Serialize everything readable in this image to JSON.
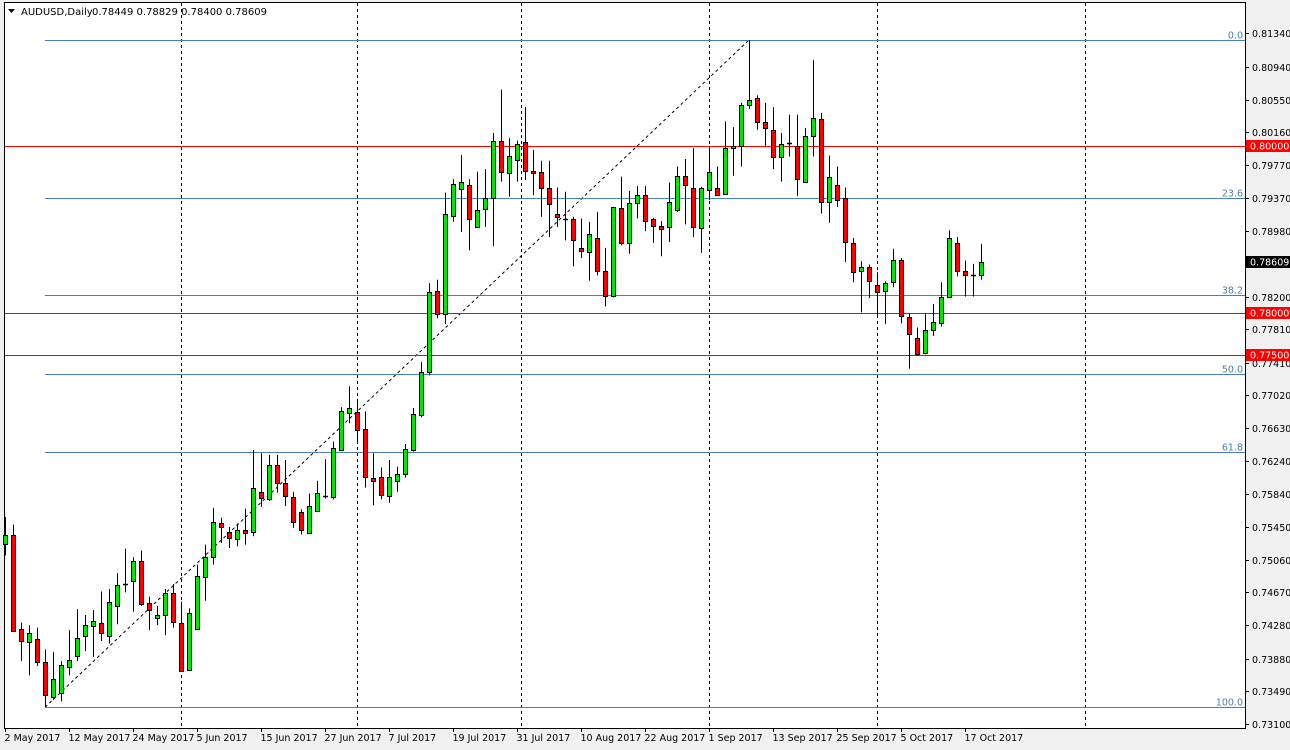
{
  "window": {
    "symbol_timeframe": "AUDUSD,Daily",
    "ohlc_readout": "0.78449 0.78829 0.78400 0.78609",
    "menu_icon": "triangle-down-icon"
  },
  "colors": {
    "bull": "#00e600",
    "bear": "#ff0000",
    "fib": "#4a7fb5",
    "hline": "#ff0000",
    "current_price_bg": "#000000"
  },
  "chart_data": {
    "type": "candlestick",
    "title": "AUDUSD,Daily",
    "ylim": [
      0.731,
      0.8134
    ],
    "grid": false,
    "y_ticks": [
      "0.81340",
      "0.80940",
      "0.80550",
      "0.80160",
      "0.79770",
      "0.79370",
      "0.78980",
      "0.78200",
      "0.77810",
      "0.77410",
      "0.77020",
      "0.76630",
      "0.76240",
      "0.75840",
      "0.75450",
      "0.75060",
      "0.74670",
      "0.74280",
      "0.73880",
      "0.73490",
      "0.73100"
    ],
    "x_ticks": [
      {
        "label": "2 May 2017",
        "bar": 0
      },
      {
        "label": "12 May 2017",
        "bar": 8
      },
      {
        "label": "24 May 2017",
        "bar": 16
      },
      {
        "label": "5 Jun 2017",
        "bar": 24
      },
      {
        "label": "15 Jun 2017",
        "bar": 32
      },
      {
        "label": "27 Jun 2017",
        "bar": 40
      },
      {
        "label": "7 Jul 2017",
        "bar": 48
      },
      {
        "label": "19 Jul 2017",
        "bar": 56
      },
      {
        "label": "31 Jul 2017",
        "bar": 64
      },
      {
        "label": "10 Aug 2017",
        "bar": 72
      },
      {
        "label": "22 Aug 2017",
        "bar": 80
      },
      {
        "label": "1 Sep 2017",
        "bar": 88
      },
      {
        "label": "13 Sep 2017",
        "bar": 96
      },
      {
        "label": "25 Sep 2017",
        "bar": 104
      },
      {
        "label": "5 Oct 2017",
        "bar": 112
      },
      {
        "label": "17 Oct 2017",
        "bar": 120
      }
    ],
    "ohlc": [
      [
        0.7525,
        0.7557,
        0.7511,
        0.7536
      ],
      [
        0.7536,
        0.7548,
        0.7421,
        0.7422
      ],
      [
        0.7423,
        0.7431,
        0.7385,
        0.7409
      ],
      [
        0.7408,
        0.7428,
        0.7368,
        0.7419
      ],
      [
        0.7411,
        0.7425,
        0.7379,
        0.7384
      ],
      [
        0.7384,
        0.7399,
        0.733,
        0.7345
      ],
      [
        0.7342,
        0.7396,
        0.7339,
        0.7364
      ],
      [
        0.7347,
        0.7385,
        0.7337,
        0.738
      ],
      [
        0.7378,
        0.7422,
        0.7368,
        0.7386
      ],
      [
        0.7391,
        0.7447,
        0.7385,
        0.7413
      ],
      [
        0.7415,
        0.744,
        0.7397,
        0.7428
      ],
      [
        0.7427,
        0.7446,
        0.739,
        0.7433
      ],
      [
        0.7431,
        0.7468,
        0.7409,
        0.7419
      ],
      [
        0.7416,
        0.7471,
        0.7406,
        0.7456
      ],
      [
        0.7451,
        0.749,
        0.7429,
        0.7476
      ],
      [
        0.7476,
        0.7519,
        0.7467,
        0.7477
      ],
      [
        0.7481,
        0.7509,
        0.7444,
        0.7505
      ],
      [
        0.7505,
        0.7517,
        0.7451,
        0.7454
      ],
      [
        0.7454,
        0.7462,
        0.7422,
        0.7446
      ],
      [
        0.7436,
        0.7451,
        0.7428,
        0.744
      ],
      [
        0.744,
        0.7471,
        0.7416,
        0.7466
      ],
      [
        0.7466,
        0.7477,
        0.7425,
        0.7431
      ],
      [
        0.7431,
        0.7456,
        0.7373,
        0.7374
      ],
      [
        0.7374,
        0.7448,
        0.7373,
        0.7442
      ],
      [
        0.7423,
        0.75,
        0.7423,
        0.7486
      ],
      [
        0.7485,
        0.7524,
        0.7457,
        0.7509
      ],
      [
        0.7509,
        0.7568,
        0.75,
        0.7551
      ],
      [
        0.755,
        0.7556,
        0.7526,
        0.7545
      ],
      [
        0.7539,
        0.7545,
        0.752,
        0.7532
      ],
      [
        0.7531,
        0.7549,
        0.7522,
        0.7542
      ],
      [
        0.7542,
        0.7567,
        0.7524,
        0.7538
      ],
      [
        0.7538,
        0.7637,
        0.7534,
        0.7591
      ],
      [
        0.7587,
        0.7633,
        0.7569,
        0.758
      ],
      [
        0.7579,
        0.7631,
        0.7576,
        0.7619
      ],
      [
        0.7619,
        0.7631,
        0.7586,
        0.7598
      ],
      [
        0.7597,
        0.7625,
        0.757,
        0.7581
      ],
      [
        0.7581,
        0.7587,
        0.7544,
        0.7551
      ],
      [
        0.7563,
        0.7566,
        0.7536,
        0.7541
      ],
      [
        0.7538,
        0.7585,
        0.7537,
        0.757
      ],
      [
        0.7564,
        0.76,
        0.7563,
        0.7586
      ],
      [
        0.7581,
        0.7626,
        0.7579,
        0.7582
      ],
      [
        0.7581,
        0.7647,
        0.7578,
        0.7639
      ],
      [
        0.7637,
        0.7688,
        0.7636,
        0.7683
      ],
      [
        0.7681,
        0.7713,
        0.7669,
        0.7687
      ],
      [
        0.7682,
        0.7698,
        0.7644,
        0.7661
      ],
      [
        0.7662,
        0.7683,
        0.7592,
        0.7605
      ],
      [
        0.7604,
        0.7633,
        0.7571,
        0.76
      ],
      [
        0.7605,
        0.7616,
        0.7578,
        0.7583
      ],
      [
        0.7582,
        0.7625,
        0.7574,
        0.7605
      ],
      [
        0.76,
        0.7617,
        0.7587,
        0.7608
      ],
      [
        0.7608,
        0.7644,
        0.7604,
        0.7638
      ],
      [
        0.7637,
        0.7687,
        0.7635,
        0.768
      ],
      [
        0.7679,
        0.7742,
        0.7676,
        0.773
      ],
      [
        0.7729,
        0.7836,
        0.7726,
        0.7825
      ],
      [
        0.7826,
        0.784,
        0.7794,
        0.7799
      ],
      [
        0.7799,
        0.7944,
        0.7787,
        0.7918
      ],
      [
        0.7916,
        0.796,
        0.7909,
        0.7954
      ],
      [
        0.7949,
        0.7989,
        0.7897,
        0.7957
      ],
      [
        0.7953,
        0.796,
        0.7875,
        0.7913
      ],
      [
        0.7903,
        0.7969,
        0.7903,
        0.7923
      ],
      [
        0.7925,
        0.7972,
        0.7903,
        0.7938
      ],
      [
        0.7938,
        0.8015,
        0.788,
        0.8006
      ],
      [
        0.8006,
        0.8067,
        0.7957,
        0.7969
      ],
      [
        0.7968,
        0.8009,
        0.7939,
        0.7988
      ],
      [
        0.7983,
        0.8006,
        0.7957,
        0.8002
      ],
      [
        0.8004,
        0.8046,
        0.7959,
        0.7969
      ],
      [
        0.797,
        0.7995,
        0.7941,
        0.7968
      ],
      [
        0.7968,
        0.7982,
        0.7915,
        0.7949
      ],
      [
        0.795,
        0.7982,
        0.7891,
        0.7931
      ],
      [
        0.7918,
        0.795,
        0.7903,
        0.7914
      ],
      [
        0.7912,
        0.7945,
        0.7887,
        0.7911
      ],
      [
        0.7913,
        0.7915,
        0.7856,
        0.7888
      ],
      [
        0.7878,
        0.7913,
        0.7866,
        0.7875
      ],
      [
        0.7873,
        0.7909,
        0.7839,
        0.7895
      ],
      [
        0.789,
        0.7921,
        0.7845,
        0.7851
      ],
      [
        0.7851,
        0.7878,
        0.7808,
        0.7821
      ],
      [
        0.7821,
        0.7927,
        0.7819,
        0.7927
      ],
      [
        0.7926,
        0.7963,
        0.7881,
        0.7884
      ],
      [
        0.7883,
        0.7946,
        0.7871,
        0.7931
      ],
      [
        0.7931,
        0.7952,
        0.7913,
        0.7941
      ],
      [
        0.7941,
        0.7952,
        0.7898,
        0.791
      ],
      [
        0.7912,
        0.7914,
        0.7884,
        0.7904
      ],
      [
        0.7904,
        0.791,
        0.7868,
        0.79
      ],
      [
        0.7903,
        0.7956,
        0.7885,
        0.7933
      ],
      [
        0.7923,
        0.7975,
        0.7921,
        0.7964
      ],
      [
        0.7964,
        0.7984,
        0.7906,
        0.7953
      ],
      [
        0.7949,
        0.7997,
        0.7891,
        0.7902
      ],
      [
        0.7901,
        0.7951,
        0.7872,
        0.7949
      ],
      [
        0.7947,
        0.7997,
        0.7935,
        0.7969
      ],
      [
        0.795,
        0.7975,
        0.7942,
        0.7942
      ],
      [
        0.7942,
        0.8029,
        0.7942,
        0.7997
      ],
      [
        0.7997,
        0.8022,
        0.7964,
        0.7999
      ],
      [
        0.7999,
        0.8051,
        0.7975,
        0.8048
      ],
      [
        0.8048,
        0.8126,
        0.8044,
        0.8054
      ],
      [
        0.8057,
        0.806,
        0.8019,
        0.8028
      ],
      [
        0.8028,
        0.8051,
        0.7998,
        0.8021
      ],
      [
        0.8019,
        0.8046,
        0.7972,
        0.7987
      ],
      [
        0.7987,
        0.8015,
        0.7957,
        0.8002
      ],
      [
        0.8002,
        0.8037,
        0.7987,
        0.8003
      ],
      [
        0.7999,
        0.8037,
        0.794,
        0.796
      ],
      [
        0.7957,
        0.8021,
        0.7957,
        0.8012
      ],
      [
        0.8012,
        0.8102,
        0.7987,
        0.8033
      ],
      [
        0.8032,
        0.8039,
        0.7919,
        0.7933
      ],
      [
        0.7933,
        0.7988,
        0.7908,
        0.7963
      ],
      [
        0.7953,
        0.7975,
        0.7927,
        0.7935
      ],
      [
        0.7937,
        0.795,
        0.7861,
        0.7884
      ],
      [
        0.7884,
        0.789,
        0.7837,
        0.7849
      ],
      [
        0.785,
        0.7862,
        0.7801,
        0.7855
      ],
      [
        0.7855,
        0.7858,
        0.7818,
        0.7838
      ],
      [
        0.7834,
        0.7849,
        0.7795,
        0.7826
      ],
      [
        0.7826,
        0.7838,
        0.7787,
        0.7836
      ],
      [
        0.7837,
        0.7877,
        0.7831,
        0.7863
      ],
      [
        0.7863,
        0.7866,
        0.7788,
        0.7796
      ],
      [
        0.7796,
        0.78,
        0.7734,
        0.7776
      ],
      [
        0.7771,
        0.7783,
        0.7749,
        0.7752
      ],
      [
        0.7753,
        0.7799,
        0.7751,
        0.778
      ],
      [
        0.778,
        0.7811,
        0.7773,
        0.7789
      ],
      [
        0.7789,
        0.7837,
        0.7784,
        0.782
      ],
      [
        0.782,
        0.7899,
        0.782,
        0.789
      ],
      [
        0.7884,
        0.7891,
        0.7844,
        0.7851
      ],
      [
        0.7851,
        0.7863,
        0.782,
        0.7846
      ],
      [
        0.7845,
        0.7859,
        0.782,
        0.7846
      ],
      [
        0.78449,
        0.78829,
        0.784,
        0.78609
      ]
    ],
    "fibonacci": {
      "from_bar": 5,
      "to_bar": 93,
      "levels": [
        {
          "label": "0.0",
          "price": 0.8126
        },
        {
          "label": "23.6",
          "price": 0.7938
        },
        {
          "label": "38.2",
          "price": 0.7822
        },
        {
          "label": "50.0",
          "price": 0.7728
        },
        {
          "label": "61.8",
          "price": 0.7634
        },
        {
          "label": "100.0",
          "price": 0.733
        }
      ]
    },
    "horizontal_lines": [
      {
        "label": "0.80000",
        "price": 0.8
      },
      {
        "label": "0.78000",
        "price": 0.78
      },
      {
        "label": "0.77500",
        "price": 0.775
      }
    ],
    "current_price": {
      "label": "0.78609",
      "price": 0.78609
    }
  }
}
